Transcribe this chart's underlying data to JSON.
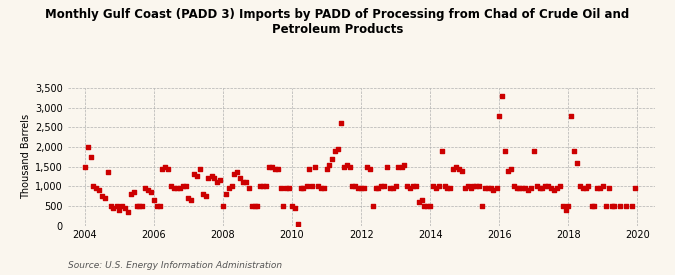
{
  "title": "Monthly Gulf Coast (PADD 3) Imports by PADD of Processing from Chad of Crude Oil and\nPetroleum Products",
  "ylabel": "Thousand Barrels",
  "source": "Source: U.S. Energy Information Administration",
  "background_color": "#faf6ee",
  "plot_bg_color": "#faf6ee",
  "dot_color": "#cc0000",
  "ylim": [
    0,
    3500
  ],
  "yticks": [
    0,
    500,
    1000,
    1500,
    2000,
    2500,
    3000,
    3500
  ],
  "xlim_start": 2003.5,
  "xlim_end": 2020.5,
  "xticks": [
    2004,
    2006,
    2008,
    2010,
    2012,
    2014,
    2016,
    2018,
    2020
  ],
  "data": [
    [
      2004.0,
      1500
    ],
    [
      2004.08,
      2000
    ],
    [
      2004.17,
      1750
    ],
    [
      2004.25,
      1000
    ],
    [
      2004.33,
      950
    ],
    [
      2004.42,
      900
    ],
    [
      2004.5,
      750
    ],
    [
      2004.58,
      700
    ],
    [
      2004.67,
      1350
    ],
    [
      2004.75,
      500
    ],
    [
      2004.83,
      450
    ],
    [
      2004.92,
      500
    ],
    [
      2005.0,
      400
    ],
    [
      2005.08,
      500
    ],
    [
      2005.17,
      450
    ],
    [
      2005.25,
      350
    ],
    [
      2005.33,
      800
    ],
    [
      2005.42,
      850
    ],
    [
      2005.5,
      500
    ],
    [
      2005.58,
      500
    ],
    [
      2005.67,
      500
    ],
    [
      2005.75,
      950
    ],
    [
      2005.83,
      900
    ],
    [
      2005.92,
      850
    ],
    [
      2006.0,
      650
    ],
    [
      2006.08,
      500
    ],
    [
      2006.17,
      500
    ],
    [
      2006.25,
      1450
    ],
    [
      2006.33,
      1500
    ],
    [
      2006.42,
      1450
    ],
    [
      2006.5,
      1000
    ],
    [
      2006.58,
      950
    ],
    [
      2006.67,
      950
    ],
    [
      2006.75,
      950
    ],
    [
      2006.83,
      1000
    ],
    [
      2006.92,
      1000
    ],
    [
      2007.0,
      700
    ],
    [
      2007.08,
      650
    ],
    [
      2007.17,
      1300
    ],
    [
      2007.25,
      1250
    ],
    [
      2007.33,
      1450
    ],
    [
      2007.42,
      800
    ],
    [
      2007.5,
      750
    ],
    [
      2007.58,
      1200
    ],
    [
      2007.67,
      1250
    ],
    [
      2007.75,
      1200
    ],
    [
      2007.83,
      1100
    ],
    [
      2007.92,
      1150
    ],
    [
      2008.0,
      500
    ],
    [
      2008.08,
      800
    ],
    [
      2008.17,
      950
    ],
    [
      2008.25,
      1000
    ],
    [
      2008.33,
      1300
    ],
    [
      2008.42,
      1350
    ],
    [
      2008.5,
      1200
    ],
    [
      2008.58,
      1100
    ],
    [
      2008.67,
      1100
    ],
    [
      2008.75,
      950
    ],
    [
      2008.83,
      500
    ],
    [
      2008.92,
      500
    ],
    [
      2009.0,
      500
    ],
    [
      2009.08,
      1000
    ],
    [
      2009.17,
      1000
    ],
    [
      2009.25,
      1000
    ],
    [
      2009.33,
      1500
    ],
    [
      2009.42,
      1500
    ],
    [
      2009.5,
      1450
    ],
    [
      2009.58,
      1450
    ],
    [
      2009.67,
      950
    ],
    [
      2009.75,
      500
    ],
    [
      2009.83,
      950
    ],
    [
      2009.92,
      950
    ],
    [
      2010.0,
      500
    ],
    [
      2010.08,
      450
    ],
    [
      2010.17,
      50
    ],
    [
      2010.25,
      950
    ],
    [
      2010.33,
      950
    ],
    [
      2010.42,
      1000
    ],
    [
      2010.5,
      1450
    ],
    [
      2010.58,
      1000
    ],
    [
      2010.67,
      1500
    ],
    [
      2010.75,
      1000
    ],
    [
      2010.83,
      950
    ],
    [
      2010.92,
      950
    ],
    [
      2011.0,
      1450
    ],
    [
      2011.08,
      1550
    ],
    [
      2011.17,
      1700
    ],
    [
      2011.25,
      1900
    ],
    [
      2011.33,
      1950
    ],
    [
      2011.42,
      2600
    ],
    [
      2011.5,
      1500
    ],
    [
      2011.58,
      1550
    ],
    [
      2011.67,
      1500
    ],
    [
      2011.75,
      1000
    ],
    [
      2011.83,
      1000
    ],
    [
      2011.92,
      950
    ],
    [
      2012.0,
      950
    ],
    [
      2012.08,
      950
    ],
    [
      2012.17,
      1500
    ],
    [
      2012.25,
      1450
    ],
    [
      2012.33,
      500
    ],
    [
      2012.42,
      950
    ],
    [
      2012.5,
      950
    ],
    [
      2012.58,
      1000
    ],
    [
      2012.67,
      1000
    ],
    [
      2012.75,
      1500
    ],
    [
      2012.83,
      950
    ],
    [
      2012.92,
      950
    ],
    [
      2013.0,
      1000
    ],
    [
      2013.08,
      1500
    ],
    [
      2013.17,
      1500
    ],
    [
      2013.25,
      1550
    ],
    [
      2013.33,
      1000
    ],
    [
      2013.42,
      950
    ],
    [
      2013.5,
      1000
    ],
    [
      2013.58,
      1000
    ],
    [
      2013.67,
      600
    ],
    [
      2013.75,
      650
    ],
    [
      2013.83,
      500
    ],
    [
      2013.92,
      500
    ],
    [
      2014.0,
      500
    ],
    [
      2014.08,
      1000
    ],
    [
      2014.17,
      950
    ],
    [
      2014.25,
      1000
    ],
    [
      2014.33,
      1900
    ],
    [
      2014.42,
      1000
    ],
    [
      2014.5,
      950
    ],
    [
      2014.58,
      950
    ],
    [
      2014.67,
      1450
    ],
    [
      2014.75,
      1500
    ],
    [
      2014.83,
      1450
    ],
    [
      2014.92,
      1400
    ],
    [
      2015.0,
      950
    ],
    [
      2015.08,
      1000
    ],
    [
      2015.17,
      950
    ],
    [
      2015.25,
      1000
    ],
    [
      2015.33,
      1000
    ],
    [
      2015.42,
      1000
    ],
    [
      2015.5,
      500
    ],
    [
      2015.58,
      950
    ],
    [
      2015.67,
      950
    ],
    [
      2015.75,
      950
    ],
    [
      2015.83,
      900
    ],
    [
      2015.92,
      950
    ],
    [
      2016.0,
      2800
    ],
    [
      2016.08,
      3300
    ],
    [
      2016.17,
      1900
    ],
    [
      2016.25,
      1400
    ],
    [
      2016.33,
      1450
    ],
    [
      2016.42,
      1000
    ],
    [
      2016.5,
      950
    ],
    [
      2016.58,
      950
    ],
    [
      2016.67,
      950
    ],
    [
      2016.75,
      950
    ],
    [
      2016.83,
      900
    ],
    [
      2016.92,
      950
    ],
    [
      2017.0,
      1900
    ],
    [
      2017.08,
      1000
    ],
    [
      2017.17,
      950
    ],
    [
      2017.25,
      950
    ],
    [
      2017.33,
      1000
    ],
    [
      2017.42,
      1000
    ],
    [
      2017.5,
      950
    ],
    [
      2017.58,
      900
    ],
    [
      2017.67,
      950
    ],
    [
      2017.75,
      1000
    ],
    [
      2017.83,
      500
    ],
    [
      2017.92,
      400
    ],
    [
      2018.0,
      500
    ],
    [
      2018.08,
      2800
    ],
    [
      2018.17,
      1900
    ],
    [
      2018.25,
      1600
    ],
    [
      2018.33,
      1000
    ],
    [
      2018.42,
      950
    ],
    [
      2018.5,
      950
    ],
    [
      2018.58,
      1000
    ],
    [
      2018.67,
      500
    ],
    [
      2018.75,
      500
    ],
    [
      2018.83,
      950
    ],
    [
      2018.92,
      950
    ],
    [
      2019.0,
      1000
    ],
    [
      2019.08,
      500
    ],
    [
      2019.17,
      950
    ],
    [
      2019.25,
      500
    ],
    [
      2019.33,
      500
    ],
    [
      2019.5,
      500
    ],
    [
      2019.67,
      500
    ],
    [
      2019.83,
      500
    ],
    [
      2019.92,
      950
    ]
  ]
}
